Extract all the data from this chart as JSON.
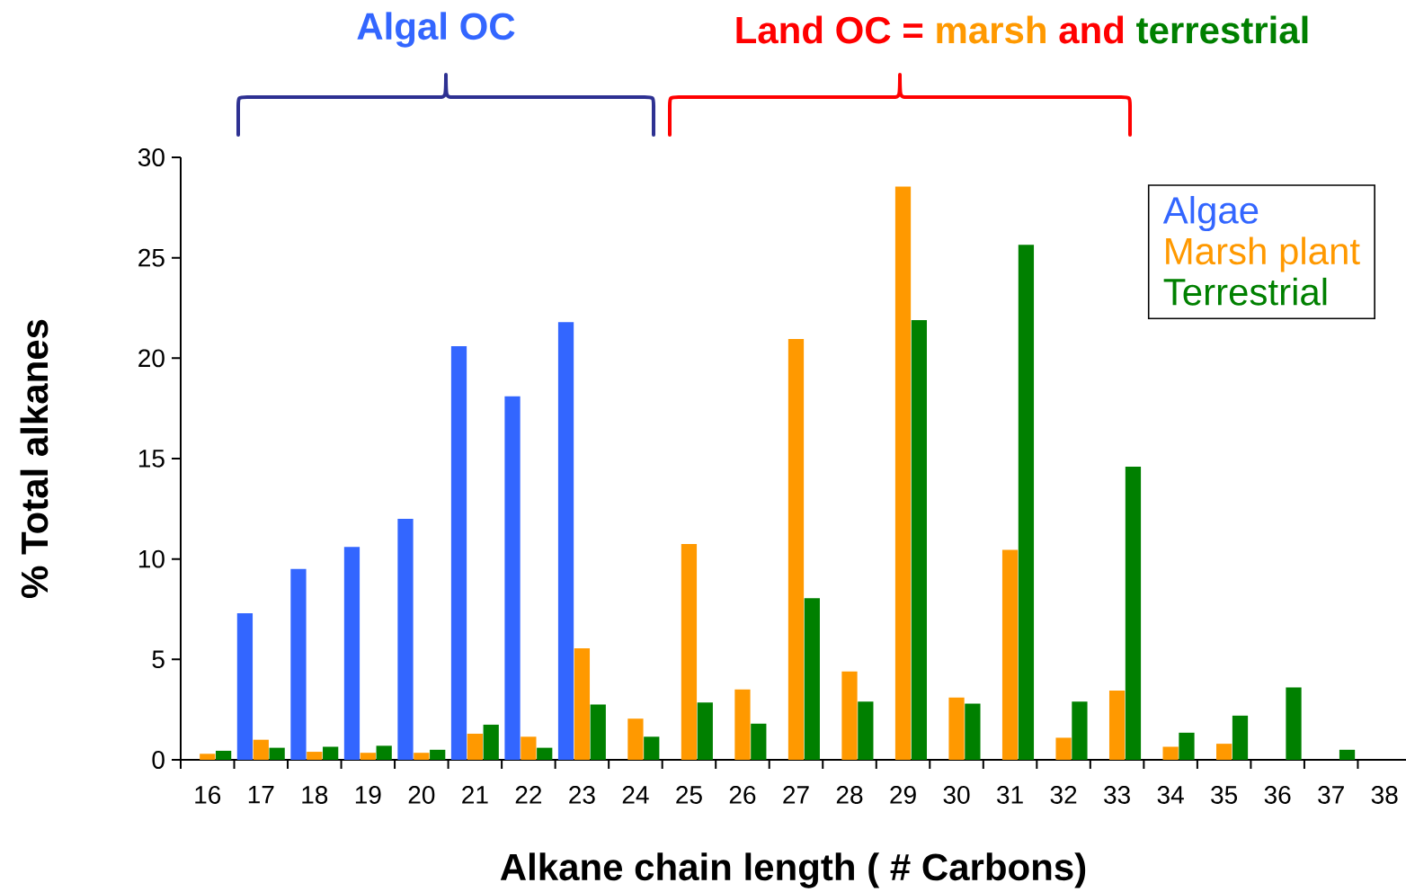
{
  "chart_data": {
    "type": "bar",
    "xlabel": "Alkane chain length ( # Carbons)",
    "ylabel": "% Total alkanes",
    "annotations": [
      "Algal OC",
      "Land OC =",
      "marsh",
      "and",
      "terrestrial"
    ],
    "categories": [
      "16",
      "17",
      "18",
      "19",
      "20",
      "21",
      "22",
      "23",
      "24",
      "25",
      "26",
      "27",
      "28",
      "29",
      "30",
      "31",
      "32",
      "33",
      "34",
      "35",
      "36",
      "37",
      "38"
    ],
    "series": [
      {
        "name": "Algae",
        "color": "#3366ff",
        "values": [
          null,
          7.3,
          9.5,
          10.6,
          12.0,
          20.6,
          18.1,
          21.8,
          null,
          null,
          null,
          null,
          null,
          null,
          null,
          null,
          null,
          null,
          null,
          null,
          null,
          null,
          null
        ]
      },
      {
        "name": "Marsh plant",
        "color": "#ff9900",
        "values": [
          0.3,
          1.0,
          0.4,
          0.35,
          0.35,
          1.3,
          1.15,
          5.55,
          2.05,
          10.75,
          3.5,
          20.95,
          4.4,
          28.55,
          3.1,
          10.45,
          1.1,
          3.45,
          0.65,
          0.8,
          null,
          null,
          null
        ]
      },
      {
        "name": "Terrestrial",
        "color": "#008000",
        "values": [
          0.45,
          0.6,
          0.65,
          0.7,
          0.5,
          1.75,
          0.6,
          2.75,
          1.15,
          2.85,
          1.8,
          8.05,
          2.9,
          21.9,
          2.8,
          25.65,
          2.9,
          14.6,
          1.35,
          2.2,
          3.6,
          0.5,
          null
        ]
      }
    ],
    "ylim": [
      0,
      30
    ],
    "yticks": [
      0,
      5,
      10,
      15,
      20,
      25,
      30
    ],
    "legend": "top right"
  }
}
